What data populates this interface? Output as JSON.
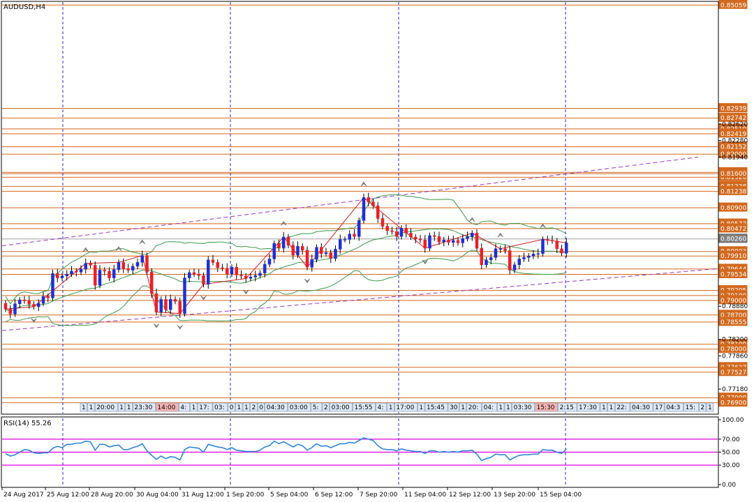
{
  "window": {
    "title": "AUDUSD,H4"
  },
  "colors": {
    "background": "#ffffff",
    "bull": "#1f2fd6",
    "bear": "#e8202a",
    "level_line": "#d2691e",
    "bands": "#3a9a4a",
    "channel": "#9b30c8",
    "zigzag": "#d01818",
    "rsi": "#2f86d8",
    "rsi_levels": "#e000e0",
    "separator": "#2a2ad0"
  },
  "chart_data": [
    {
      "type": "candlestick",
      "title": "AUDUSD,H4",
      "ylim": [
        0.7668,
        0.8512
      ],
      "price_axis_ticks": [
        "0.82620",
        "0.82280",
        "0.81940",
        "0.78880",
        "0.78200",
        "0.77860",
        "0.77180"
      ],
      "horizontal_levels": [
        "0.85059",
        "0.82939",
        "0.82742",
        "0.82519",
        "0.82419",
        "0.82152",
        "0.82000",
        "0.81626",
        "0.81526",
        "0.81338",
        "0.81238",
        "0.81600",
        "0.80900",
        "0.80572",
        "0.80472",
        "0.80003",
        "0.79910",
        "0.79644",
        "0.79534",
        "0.79205",
        "0.79100",
        "0.79000",
        "0.78700",
        "0.78555",
        "0.78100",
        "0.78000",
        "0.77627",
        "0.77527",
        "0.77000",
        "0.76900"
      ],
      "current_price": "0.80260",
      "x_tick_labels": [
        "24 Aug 2017",
        "25 Aug 12:00",
        "28 Aug 20:00",
        "30 Aug 04:00",
        "31 Aug 12:00",
        "1 Sep 20:00",
        "5 Sep 04:00",
        "6 Sep 12:00",
        "7 Sep 20:00",
        "11 Sep 04:00",
        "12 Sep 12:00",
        "13 Sep 20:00",
        "15 Sep 04:00"
      ],
      "close_series": [
        0.7882,
        0.7872,
        0.7893,
        0.7901,
        0.7899,
        0.7892,
        0.7887,
        0.7894,
        0.7908,
        0.7905,
        0.7955,
        0.7946,
        0.795,
        0.7954,
        0.796,
        0.7958,
        0.7964,
        0.7976,
        0.7972,
        0.7931,
        0.7962,
        0.796,
        0.7946,
        0.7963,
        0.7978,
        0.7965,
        0.7962,
        0.797,
        0.7978,
        0.7992,
        0.7958,
        0.7914,
        0.7876,
        0.7902,
        0.7881,
        0.7902,
        0.7898,
        0.7873,
        0.7946,
        0.7957,
        0.7954,
        0.7951,
        0.7933,
        0.7983,
        0.7978,
        0.7967,
        0.7966,
        0.7954,
        0.7968,
        0.7952,
        0.795,
        0.7945,
        0.7948,
        0.7951,
        0.7956,
        0.7974,
        0.7985,
        0.8017,
        0.8007,
        0.803,
        0.8013,
        0.7993,
        0.8011,
        0.8003,
        0.7968,
        0.7984,
        0.8009,
        0.7996,
        0.7998,
        0.7986,
        0.8005,
        0.8025,
        0.8025,
        0.8036,
        0.8031,
        0.8064,
        0.8111,
        0.8102,
        0.8094,
        0.8068,
        0.8052,
        0.8043,
        0.8041,
        0.8031,
        0.8048,
        0.8038,
        0.803,
        0.8026,
        0.8024,
        0.8007,
        0.8033,
        0.8031,
        0.802,
        0.8024,
        0.8019,
        0.8023,
        0.8018,
        0.8027,
        0.8031,
        0.8038,
        0.8007,
        0.7973,
        0.7983,
        0.7988,
        0.8006,
        0.8006,
        0.8002,
        0.7962,
        0.7973,
        0.7985,
        0.7988,
        0.7991,
        0.7995,
        0.7996,
        0.8025,
        0.8023,
        0.8022,
        0.8006,
        0.7997,
        0.8018
      ]
    },
    {
      "type": "line",
      "title": "RSI(14) 55.26",
      "ylim": [
        0,
        100
      ],
      "axis_ticks": [
        "100.00",
        "70.00",
        "50.00",
        "30.00",
        "0.00"
      ],
      "levels": [
        70,
        50,
        30
      ],
      "rsi_series": [
        48,
        44,
        46,
        50,
        54,
        53,
        49,
        48,
        49,
        49,
        56,
        59,
        57,
        62,
        62,
        64,
        64,
        67,
        66,
        53,
        62,
        62,
        58,
        60,
        61,
        54,
        54,
        57,
        59,
        63,
        52,
        45,
        39,
        44,
        40,
        43,
        42,
        38,
        54,
        58,
        57,
        56,
        50,
        62,
        60,
        58,
        57,
        54,
        57,
        53,
        52,
        51,
        51,
        51,
        53,
        58,
        60,
        67,
        63,
        66,
        62,
        58,
        62,
        60,
        53,
        57,
        63,
        59,
        60,
        57,
        60,
        63,
        63,
        65,
        64,
        68,
        72,
        70,
        68,
        60,
        55,
        54,
        54,
        52,
        55,
        53,
        52,
        51,
        51,
        48,
        52,
        52,
        50,
        51,
        50,
        51,
        50,
        52,
        52,
        53,
        47,
        37,
        40,
        42,
        47,
        46,
        46,
        38,
        42,
        45,
        46,
        46,
        47,
        47,
        54,
        53,
        53,
        50,
        48,
        55
      ]
    },
    {
      "type": "table",
      "title": "time_label_strip",
      "labels": [
        "1",
        "1",
        "20:00",
        "1",
        "1",
        "23:30",
        "14:00",
        "4:",
        "1",
        "17:",
        "03:",
        "0",
        "1",
        "1",
        "2",
        "0",
        "04:30",
        "03:00",
        "5:",
        "2",
        "03:00",
        "15:55",
        "4:",
        "1",
        "17:00",
        "1",
        "15:45",
        "30",
        "1",
        "20:",
        "04:",
        "1",
        "1",
        "03:30",
        "15:30",
        "2:15",
        "17:30",
        "1",
        "1",
        "22:",
        "04:30",
        "17",
        "04:3",
        "15:",
        "2",
        "03:3",
        "1",
        "21",
        "04:3",
        "17:3",
        "04:"
      ]
    }
  ]
}
